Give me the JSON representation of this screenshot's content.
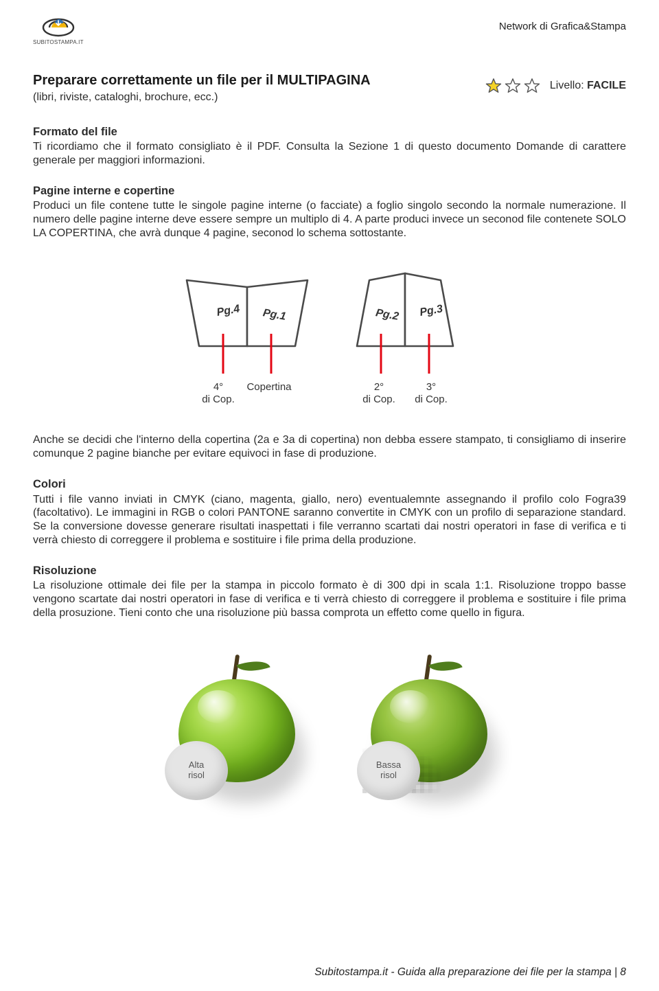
{
  "header": {
    "logo_caption": "SUBITOSTAMPA.IT",
    "network": "Network di Grafica&Stampa"
  },
  "title": {
    "main": "Preparare correttamente un file per il MULTIPAGINA",
    "subtitle": "(libri, riviste, cataloghi, brochure, ecc.)"
  },
  "level": {
    "prefix": "Livello: ",
    "value": "FACILE",
    "stars_filled": 1,
    "stars_total": 3,
    "star_fill": "#f5d324",
    "star_stroke": "#555555"
  },
  "sections": {
    "formato": {
      "title": "Formato del file",
      "body": "Ti ricordiamo che il formato consigliato è il PDF. Consulta la Sezione 1 di questo documento Domande di carattere generale per maggiori informazioni."
    },
    "pagine": {
      "title": "Pagine interne e copertine",
      "body": "Produci un file contene tutte le singole pagine interne (o facciate) a foglio singolo secondo la normale numerazione. Il numero delle pagine interne deve essere sempre un multiplo di 4. A parte produci invece un seconod file contenete SOLO LA COPERTINA, che avrà dunque 4 pagine, seconod lo schema sottostante."
    },
    "after_diagram": "Anche se decidi che l'interno della copertina (2a e 3a di copertina) non debba essere stampato, ti consigliamo di inserire comunque 2 pagine bianche per evitare equivoci in fase di produzione.",
    "colori": {
      "title": "Colori",
      "body": "Tutti i file vanno inviati in CMYK (ciano, magenta, giallo, nero) eventualemnte assegnando il profilo colo Fogra39 (facoltativo). Le immagini in RGB o colori PANTONE saranno convertite in CMYK con un profilo di separazione standard. Se la conversione dovesse generare risultati inaspettati i file verranno scartati dai nostri operatori in fase di verifica e ti verrà chiesto di correggere il problema e sostituire i file prima della produzione."
    },
    "risoluzione": {
      "title": "Risoluzione",
      "body": "La risoluzione ottimale dei file per la stampa in piccolo formato è di 300 dpi in scala 1:1. Risoluzione troppo basse vengono scartate dai nostri operatori in fase di verifica e ti verrà chiesto di correggere il problema e sostituire i file prima della prosuzione. Tieni conto che una risoluzione più bassa comprota un effetto come quello in figura."
    }
  },
  "diagram": {
    "page_labels": [
      "Pg.4",
      "Pg.1",
      "Pg.2",
      "Pg.3"
    ],
    "bottom_labels": {
      "l1a": "4°",
      "l1b": "di Cop.",
      "center": "Copertina",
      "l2a": "2°",
      "l2b": "di Cop.",
      "l3a": "3°",
      "l3b": "di Cop."
    },
    "stroke": "#4a4a4a",
    "red": "#e30613"
  },
  "apples": {
    "high_label": "Alta\nrisol",
    "low_label": "Bassa\nrisol"
  },
  "footer": "Subitostampa.it - Guida alla preparazione dei file per la stampa | 8"
}
